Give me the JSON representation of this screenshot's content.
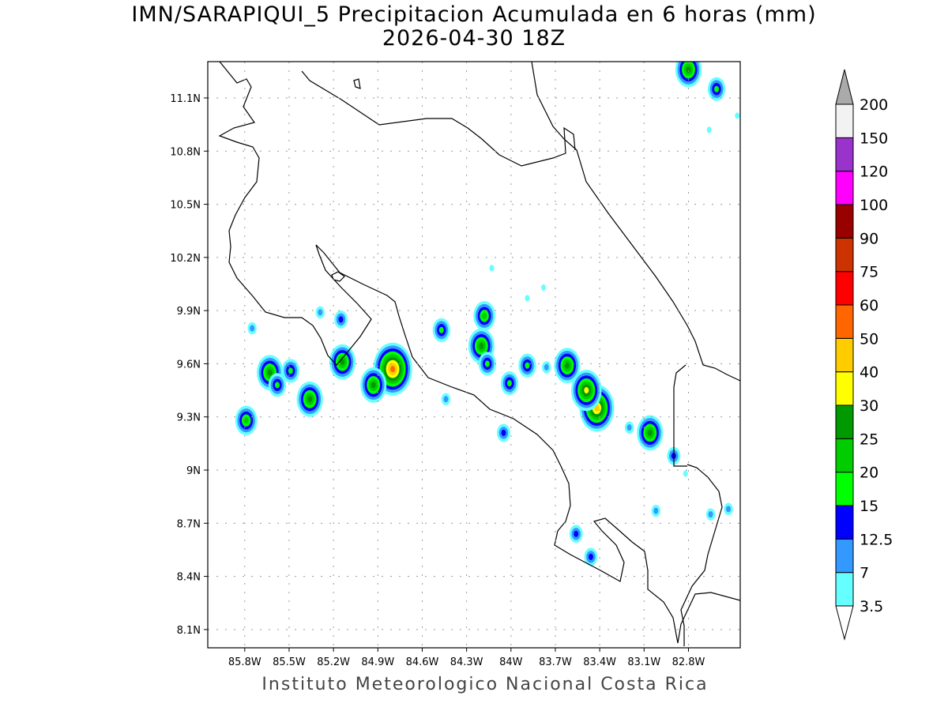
{
  "title": "IMN/SARAPIQUI_5 Precipitacion Acumulada en 6 horas (mm)",
  "subtitle": "2026-04-30 18Z",
  "footer": "Instituto Meteorologico Nacional Costa Rica",
  "map_extent": {
    "lon": [
      -86.05,
      -82.45
    ],
    "lat": [
      7.997,
      11.305
    ]
  },
  "lon_ticks": [
    {
      "value": -85.8,
      "label": "85.8W"
    },
    {
      "value": -85.5,
      "label": "85.5W"
    },
    {
      "value": -85.2,
      "label": "85.2W"
    },
    {
      "value": -84.9,
      "label": "84.9W"
    },
    {
      "value": -84.6,
      "label": "84.6W"
    },
    {
      "value": -84.3,
      "label": "84.3W"
    },
    {
      "value": -84.0,
      "label": "84W"
    },
    {
      "value": -83.7,
      "label": "83.7W"
    },
    {
      "value": -83.4,
      "label": "83.4W"
    },
    {
      "value": -83.1,
      "label": "83.1W"
    },
    {
      "value": -82.8,
      "label": "82.8W"
    }
  ],
  "lat_ticks": [
    {
      "value": 11.1,
      "label": "11.1N"
    },
    {
      "value": 10.8,
      "label": "10.8N"
    },
    {
      "value": 10.5,
      "label": "10.5N"
    },
    {
      "value": 10.2,
      "label": "10.2N"
    },
    {
      "value": 9.9,
      "label": "9.9N"
    },
    {
      "value": 9.6,
      "label": "9.6N"
    },
    {
      "value": 9.3,
      "label": "9.3N"
    },
    {
      "value": 9.0,
      "label": "9N"
    },
    {
      "value": 8.7,
      "label": "8.7N"
    },
    {
      "value": 8.4,
      "label": "8.4N"
    },
    {
      "value": 8.1,
      "label": "8.1N"
    }
  ],
  "colorbar": {
    "levels": [
      "3.5",
      "7",
      "12.5",
      "15",
      "20",
      "25",
      "30",
      "40",
      "50",
      "60",
      "75",
      "90",
      "100",
      "120",
      "150",
      "200"
    ],
    "colors": [
      "#66ffff",
      "#3399ff",
      "#0000ff",
      "#00ff00",
      "#00cc00",
      "#009900",
      "#ffff00",
      "#ffcc00",
      "#ff6600",
      "#ff0000",
      "#cc3300",
      "#990000",
      "#ff00ff",
      "#9933cc",
      "#f2f2f2"
    ],
    "over_color": "#aaaaaa",
    "under_color": "#ffffff"
  },
  "precip_cells": [
    {
      "lon": -84.8,
      "lat": 9.57,
      "peak_mm": 50
    },
    {
      "lon": -83.42,
      "lat": 9.35,
      "peak_mm": 40
    },
    {
      "lon": -83.49,
      "lat": 9.45,
      "peak_mm": 30
    },
    {
      "lon": -85.36,
      "lat": 9.4,
      "peak_mm": 25
    },
    {
      "lon": -84.93,
      "lat": 9.48,
      "peak_mm": 25
    },
    {
      "lon": -85.63,
      "lat": 9.55,
      "peak_mm": 25
    },
    {
      "lon": -85.14,
      "lat": 9.61,
      "peak_mm": 25
    },
    {
      "lon": -84.2,
      "lat": 9.7,
      "peak_mm": 25
    },
    {
      "lon": -83.62,
      "lat": 9.59,
      "peak_mm": 25
    },
    {
      "lon": -83.06,
      "lat": 9.21,
      "peak_mm": 25
    },
    {
      "lon": -82.8,
      "lat": 11.26,
      "peak_mm": 25
    },
    {
      "lon": -85.79,
      "lat": 9.28,
      "peak_mm": 20
    },
    {
      "lon": -84.18,
      "lat": 9.87,
      "peak_mm": 20
    },
    {
      "lon": -85.58,
      "lat": 9.48,
      "peak_mm": 15
    },
    {
      "lon": -85.49,
      "lat": 9.56,
      "peak_mm": 15
    },
    {
      "lon": -84.47,
      "lat": 9.79,
      "peak_mm": 15
    },
    {
      "lon": -84.16,
      "lat": 9.6,
      "peak_mm": 15
    },
    {
      "lon": -84.01,
      "lat": 9.49,
      "peak_mm": 15
    },
    {
      "lon": -83.89,
      "lat": 9.59,
      "peak_mm": 15
    },
    {
      "lon": -82.61,
      "lat": 11.15,
      "peak_mm": 15
    },
    {
      "lon": -85.15,
      "lat": 9.85,
      "peak_mm": 12.5
    },
    {
      "lon": -82.9,
      "lat": 9.08,
      "peak_mm": 12.5
    },
    {
      "lon": -83.56,
      "lat": 8.64,
      "peak_mm": 12.5
    },
    {
      "lon": -83.46,
      "lat": 8.51,
      "peak_mm": 12.5
    },
    {
      "lon": -84.05,
      "lat": 9.21,
      "peak_mm": 12.5
    },
    {
      "lon": -83.2,
      "lat": 9.24,
      "peak_mm": 7
    },
    {
      "lon": -83.02,
      "lat": 8.77,
      "peak_mm": 7
    },
    {
      "lon": -82.65,
      "lat": 8.75,
      "peak_mm": 7
    },
    {
      "lon": -82.53,
      "lat": 8.78,
      "peak_mm": 7
    },
    {
      "lon": -85.75,
      "lat": 9.8,
      "peak_mm": 7
    },
    {
      "lon": -85.29,
      "lat": 9.89,
      "peak_mm": 7
    },
    {
      "lon": -83.78,
      "lat": 10.03,
      "peak_mm": 3.5
    },
    {
      "lon": -83.89,
      "lat": 9.97,
      "peak_mm": 3.5
    },
    {
      "lon": -84.13,
      "lat": 10.14,
      "peak_mm": 3.5
    },
    {
      "lon": -84.44,
      "lat": 9.4,
      "peak_mm": 7
    },
    {
      "lon": -83.76,
      "lat": 9.58,
      "peak_mm": 7
    },
    {
      "lon": -82.47,
      "lat": 11.0,
      "peak_mm": 3.5
    },
    {
      "lon": -82.66,
      "lat": 10.92,
      "peak_mm": 3.5
    },
    {
      "lon": -82.82,
      "lat": 8.98,
      "peak_mm": 3.5
    }
  ]
}
